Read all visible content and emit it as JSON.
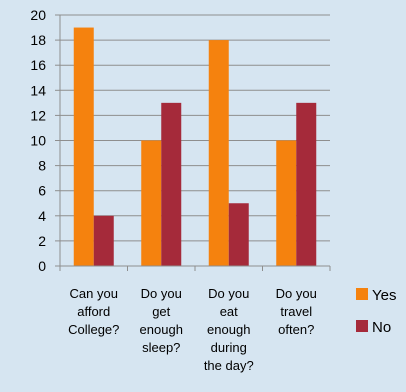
{
  "chart_data": {
    "type": "bar",
    "categories": [
      [
        "Can you",
        "afford",
        "College?"
      ],
      [
        "Do you",
        "get",
        "enough",
        "sleep?"
      ],
      [
        "Do you",
        "eat",
        "enough",
        "during",
        "the day?"
      ],
      [
        "Do you",
        "travel",
        "often?"
      ]
    ],
    "series": [
      {
        "name": "Yes",
        "color": "#f5820e",
        "values": [
          19,
          10,
          18,
          10
        ]
      },
      {
        "name": "No",
        "color": "#a52a3a",
        "values": [
          4,
          13,
          5,
          13
        ]
      }
    ],
    "ylim": [
      0,
      20
    ],
    "yticks": [
      0,
      2,
      4,
      6,
      8,
      10,
      12,
      14,
      16,
      18,
      20
    ],
    "grid": true,
    "legend": "right"
  }
}
